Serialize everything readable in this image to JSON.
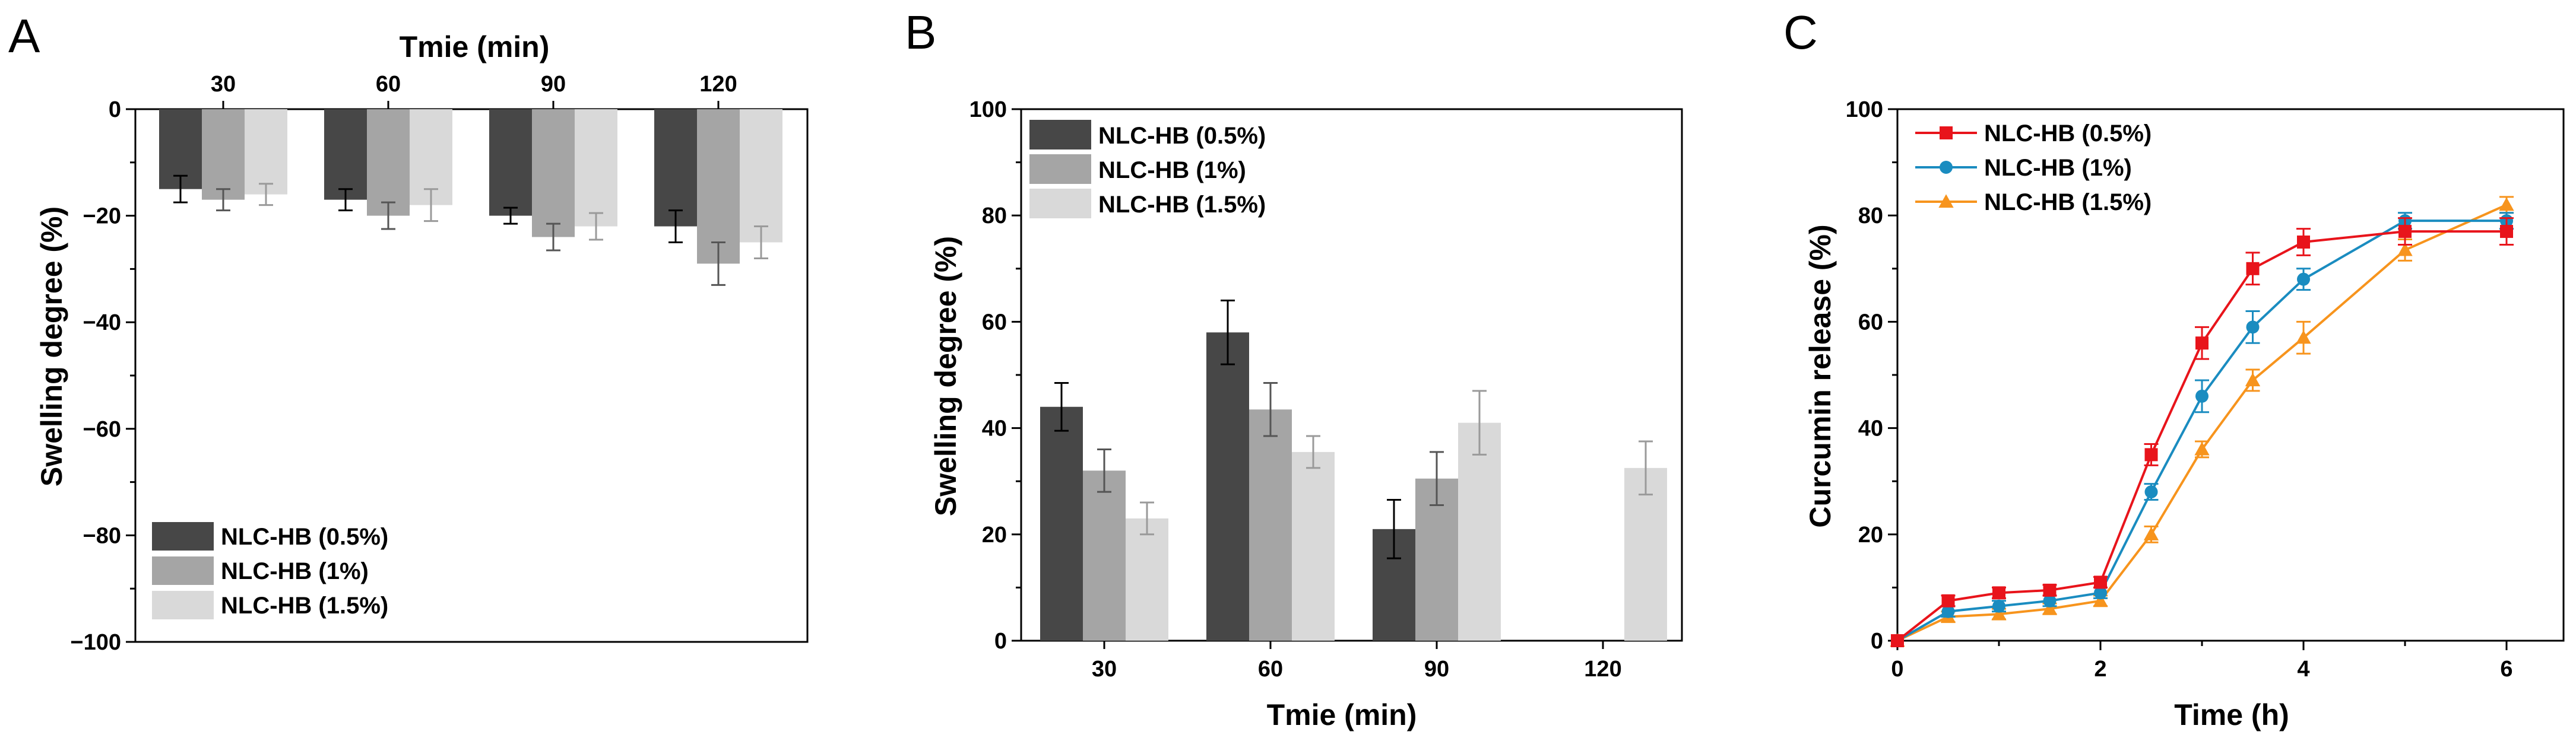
{
  "colors": {
    "NLC-HB (0.5%)": "#474747",
    "NLC-HB (1%)": "#a5a5a5",
    "NLC-HB (1.5%)": "#d9d9d9",
    "errbar_0.5": "#000000",
    "errbar_1": "#555555",
    "errbar_1.5": "#9a9a9a",
    "line_0.5": "#e8141b",
    "line_1": "#1a8cc0",
    "line_1.5": "#f7941d"
  },
  "chart_data": [
    {
      "panel": "A",
      "type": "bar",
      "title": "",
      "xlabel": "Tmie (min)",
      "xlabel_position": "top",
      "ylabel": "Swelling degree (%)",
      "categories": [
        "30",
        "60",
        "90",
        "120"
      ],
      "ylim": [
        -100,
        0
      ],
      "yticks": [
        0,
        -20,
        -40,
        -60,
        -80,
        -100
      ],
      "ytick_labels": [
        "0",
        "−20",
        "−40",
        "−60",
        "−80",
        "−100"
      ],
      "series": [
        {
          "name": "NLC-HB (0.5%)",
          "values": [
            -15,
            -17,
            -20,
            -22
          ],
          "errors": [
            2.5,
            2,
            1.5,
            3
          ]
        },
        {
          "name": "NLC-HB (1%)",
          "values": [
            -17,
            -20,
            -24,
            -29
          ],
          "errors": [
            2,
            2.5,
            2.5,
            4
          ]
        },
        {
          "name": "NLC-HB (1.5%)",
          "values": [
            -16,
            -18,
            -22,
            -25
          ],
          "errors": [
            2,
            3,
            2.5,
            3
          ]
        }
      ],
      "legend": "bottom-left",
      "grid": false
    },
    {
      "panel": "B",
      "type": "bar",
      "title": "",
      "xlabel": "Tmie (min)",
      "ylabel": "Swelling degree (%)",
      "categories": [
        "30",
        "60",
        "90",
        "120"
      ],
      "ylim": [
        0,
        100
      ],
      "yticks": [
        0,
        20,
        40,
        60,
        80,
        100
      ],
      "ytick_labels": [
        "0",
        "20",
        "40",
        "60",
        "80",
        "100"
      ],
      "series": [
        {
          "name": "NLC-HB (0.5%)",
          "values": [
            44,
            58,
            21,
            null
          ],
          "errors": [
            4.5,
            6,
            5.5,
            null
          ]
        },
        {
          "name": "NLC-HB (1%)",
          "values": [
            32,
            43.5,
            30.5,
            null
          ],
          "errors": [
            4,
            5,
            5,
            null
          ]
        },
        {
          "name": "NLC-HB (1.5%)",
          "values": [
            23,
            35.5,
            41,
            32.5
          ],
          "errors": [
            3,
            3,
            6,
            5
          ]
        }
      ],
      "legend": "top-left",
      "grid": false
    },
    {
      "panel": "C",
      "type": "line",
      "title": "",
      "xlabel": "Time (h)",
      "ylabel": "Curcumin release (%)",
      "xlim": [
        0,
        6.5
      ],
      "ylim": [
        0,
        100
      ],
      "xticks": [
        0,
        2,
        4,
        6
      ],
      "xtick_labels": [
        "0",
        "2",
        "4",
        "6"
      ],
      "yticks": [
        0,
        20,
        40,
        60,
        80,
        100
      ],
      "ytick_labels": [
        "0",
        "20",
        "40",
        "60",
        "80",
        "100"
      ],
      "series": [
        {
          "name": "NLC-HB (0.5%)",
          "marker": "square",
          "x": [
            0,
            0.5,
            1,
            1.5,
            2,
            2.5,
            3,
            3.5,
            4,
            5,
            6
          ],
          "y": [
            0,
            7.5,
            9,
            9.5,
            11,
            35,
            56,
            70,
            75,
            77,
            77
          ],
          "errors": [
            0,
            1,
            1,
            1,
            1,
            2,
            3,
            3,
            2.5,
            2.5,
            2.5
          ]
        },
        {
          "name": "NLC-HB (1%)",
          "marker": "circle",
          "x": [
            0,
            0.5,
            1,
            1.5,
            2,
            2.5,
            3,
            3.5,
            4,
            5,
            6
          ],
          "y": [
            0,
            5.5,
            6.5,
            7.5,
            9,
            28,
            46,
            59,
            68,
            79,
            79
          ],
          "errors": [
            0,
            1,
            1,
            1,
            1,
            1.5,
            3,
            3,
            2,
            1.5,
            1.5
          ]
        },
        {
          "name": "NLC-HB (1.5%)",
          "marker": "triangle",
          "x": [
            0,
            0.5,
            1,
            1.5,
            2,
            2.5,
            3,
            3.5,
            4,
            5,
            6
          ],
          "y": [
            0,
            4.5,
            5,
            6,
            7.5,
            20,
            36,
            49,
            57,
            73.5,
            82
          ],
          "errors": [
            0,
            1,
            1,
            1,
            1,
            1.5,
            1.5,
            2,
            3,
            2,
            1.5
          ]
        }
      ],
      "legend": "top-left",
      "grid": false
    }
  ]
}
